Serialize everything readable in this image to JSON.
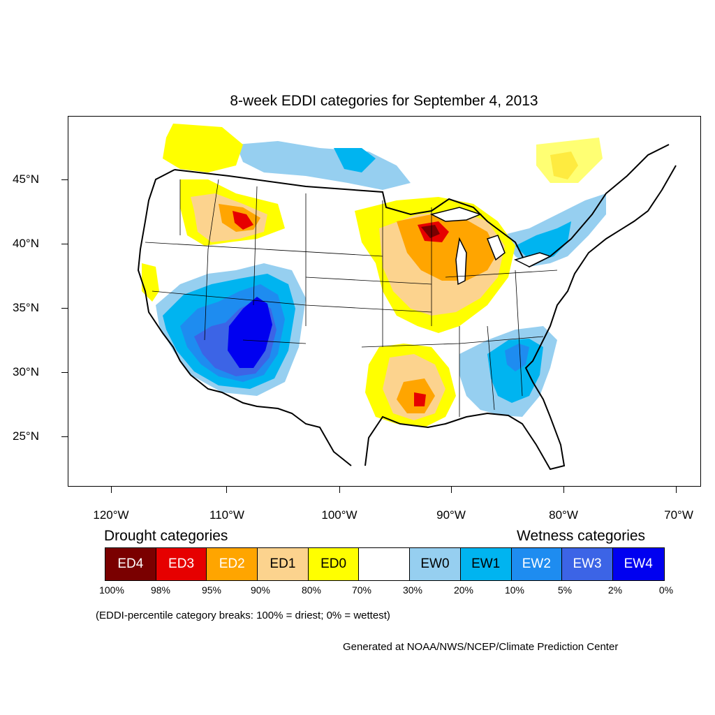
{
  "title": "8-week EDDI categories for September 4, 2013",
  "axes": {
    "lat_labels": [
      "45°N",
      "40°N",
      "35°N",
      "30°N",
      "25°N"
    ],
    "lon_labels": [
      "120°W",
      "110°W",
      "100°W",
      "90°W",
      "80°W",
      "70°W"
    ]
  },
  "legend": {
    "drought_heading": "Drought categories",
    "wetness_heading": "Wetness categories",
    "categories": [
      {
        "label": "ED4",
        "color": "#7a0000",
        "text_color": "#ffffff"
      },
      {
        "label": "ED3",
        "color": "#e60000",
        "text_color": "#ffffff"
      },
      {
        "label": "ED2",
        "color": "#ffa500",
        "text_color": "#ffffff"
      },
      {
        "label": "ED1",
        "color": "#fcd38e",
        "text_color": "#000000"
      },
      {
        "label": "ED0",
        "color": "#ffff00",
        "text_color": "#000000"
      },
      {
        "label": "",
        "color": "#ffffff",
        "text_color": "#000000"
      },
      {
        "label": "EW0",
        "color": "#96cff0",
        "text_color": "#000000"
      },
      {
        "label": "EW1",
        "color": "#00b4f0",
        "text_color": "#000000"
      },
      {
        "label": "EW2",
        "color": "#1e8cf0",
        "text_color": "#ffffff"
      },
      {
        "label": "EW3",
        "color": "#3c64e6",
        "text_color": "#ffffff"
      },
      {
        "label": "EW4",
        "color": "#0000f0",
        "text_color": "#ffffff"
      }
    ],
    "breaks": [
      "100%",
      "98%",
      "95%",
      "90%",
      "80%",
      "70%",
      "30%",
      "20%",
      "10%",
      "5%",
      "2%",
      "0%"
    ]
  },
  "note": "(EDDI-percentile category breaks: 100% = driest; 0% = wettest)",
  "credit": "Generated at NOAA/NWS/NCEP/Climate Prediction Center"
}
